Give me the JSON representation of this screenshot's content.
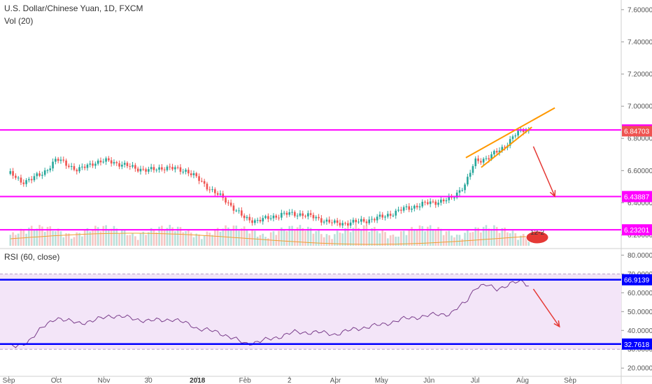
{
  "header": {
    "symbol_line": "U.S. Dollar/Chinese Yuan, 1D, FXCM",
    "volume_label": "Vol (20)",
    "rsi_label": "RSI (60, close)"
  },
  "colors": {
    "up": "#26a69a",
    "down": "#ef5350",
    "hline_magenta": "#ff00ff",
    "hline_blue": "#0000ff",
    "wedge": "#ff9800",
    "arrow": "#e53935",
    "rsi_line": "#7b3f8c",
    "rsi_band": "#f3e5f8",
    "volume_ma": "#f0a030"
  },
  "chart_data": [
    {
      "type": "candlestick",
      "title": "U.S. Dollar/Chinese Yuan, 1D, FXCM",
      "x_ticks": [
        "Sep",
        "Oct",
        "Nov",
        "30",
        "2018",
        "Feb",
        "2",
        "Apr",
        "May",
        "Jun",
        "Jul",
        "Aug",
        "Sep"
      ],
      "y_ticks": [
        "6.20000",
        "6.40000",
        "6.60000",
        "6.80000",
        "7.00000",
        "7.20000",
        "7.40000",
        "7.60000"
      ],
      "ylim": [
        6.12,
        7.66
      ],
      "close_path": [
        [
          "2017-09-01",
          6.58
        ],
        [
          "2017-09-08",
          6.53
        ],
        [
          "2017-09-15",
          6.55
        ],
        [
          "2017-09-22",
          6.58
        ],
        [
          "2017-10-01",
          6.67
        ],
        [
          "2017-10-08",
          6.64
        ],
        [
          "2017-10-15",
          6.6
        ],
        [
          "2017-10-25",
          6.65
        ],
        [
          "2017-11-05",
          6.66
        ],
        [
          "2017-11-15",
          6.63
        ],
        [
          "2017-11-25",
          6.61
        ],
        [
          "2017-11-30",
          6.6
        ],
        [
          "2017-12-10",
          6.62
        ],
        [
          "2017-12-25",
          6.6
        ],
        [
          "2018-01-01",
          6.55
        ],
        [
          "2018-01-10",
          6.48
        ],
        [
          "2018-01-20",
          6.41
        ],
        [
          "2018-02-01",
          6.3
        ],
        [
          "2018-02-08",
          6.29
        ],
        [
          "2018-02-15",
          6.3
        ],
        [
          "2018-02-25",
          6.33
        ],
        [
          "2018-03-10",
          6.33
        ],
        [
          "2018-03-25",
          6.29
        ],
        [
          "2018-04-01",
          6.27
        ],
        [
          "2018-04-15",
          6.28
        ],
        [
          "2018-05-01",
          6.31
        ],
        [
          "2018-05-15",
          6.36
        ],
        [
          "2018-06-01",
          6.4
        ],
        [
          "2018-06-15",
          6.42
        ],
        [
          "2018-06-25",
          6.52
        ],
        [
          "2018-07-01",
          6.66
        ],
        [
          "2018-07-10",
          6.68
        ],
        [
          "2018-07-20",
          6.75
        ],
        [
          "2018-07-28",
          6.83
        ],
        [
          "2018-08-03",
          6.86
        ],
        [
          "2018-08-06",
          6.84
        ]
      ],
      "last_price": 6.84703,
      "horizontal_levels": [
        6.85258,
        6.43887,
        6.23201
      ],
      "rising_wedge": {
        "upper": [
          [
            "2018-06-25",
            6.68
          ],
          [
            "2018-08-22",
            6.99
          ]
        ],
        "lower": [
          [
            "2018-07-05",
            6.62
          ],
          [
            "2018-08-07",
            6.87
          ]
        ]
      },
      "projection_arrow": [
        [
          "2018-08-08",
          6.75
        ],
        [
          "2018-08-22",
          6.44
        ]
      ]
    },
    {
      "type": "bar",
      "title": "Vol (20)",
      "badge": "12-2"
    },
    {
      "type": "line",
      "title": "RSI (60, close)",
      "y_ticks": [
        "20.0000",
        "30.0000",
        "40.0000",
        "50.0000",
        "60.0000",
        "70.0000",
        "80.0000"
      ],
      "ylim": [
        16,
        82
      ],
      "band": [
        30,
        70
      ],
      "series": [
        {
          "values": [
            [
              "2017-09-01",
              32
            ],
            [
              "2017-09-05",
              31
            ],
            [
              "2017-09-12",
              34
            ],
            [
              "2017-09-20",
              40
            ],
            [
              "2017-10-01",
              47
            ],
            [
              "2017-10-08",
              45
            ],
            [
              "2017-10-15",
              44
            ],
            [
              "2017-10-25",
              45
            ],
            [
              "2017-11-05",
              48
            ],
            [
              "2017-11-15",
              47
            ],
            [
              "2017-11-30",
              45
            ],
            [
              "2017-12-15",
              46
            ],
            [
              "2017-12-28",
              43
            ],
            [
              "2018-01-01",
              41
            ],
            [
              "2018-01-15",
              39
            ],
            [
              "2018-02-01",
              33
            ],
            [
              "2018-02-10",
              34
            ],
            [
              "2018-02-20",
              36
            ],
            [
              "2018-03-05",
              39
            ],
            [
              "2018-03-20",
              39
            ],
            [
              "2018-04-01",
              38
            ],
            [
              "2018-04-15",
              41
            ],
            [
              "2018-05-01",
              43
            ],
            [
              "2018-05-15",
              46
            ],
            [
              "2018-06-01",
              48
            ],
            [
              "2018-06-15",
              49
            ],
            [
              "2018-06-25",
              55
            ],
            [
              "2018-07-01",
              63
            ],
            [
              "2018-07-08",
              64
            ],
            [
              "2018-07-15",
              62
            ],
            [
              "2018-07-25",
              65
            ],
            [
              "2018-08-01",
              66
            ],
            [
              "2018-08-05",
              64
            ]
          ]
        }
      ],
      "horizontal_levels": [
        66.9139,
        32.7618
      ],
      "projection_arrow": [
        [
          "2018-08-08",
          62
        ],
        [
          "2018-08-25",
          42
        ]
      ]
    }
  ]
}
